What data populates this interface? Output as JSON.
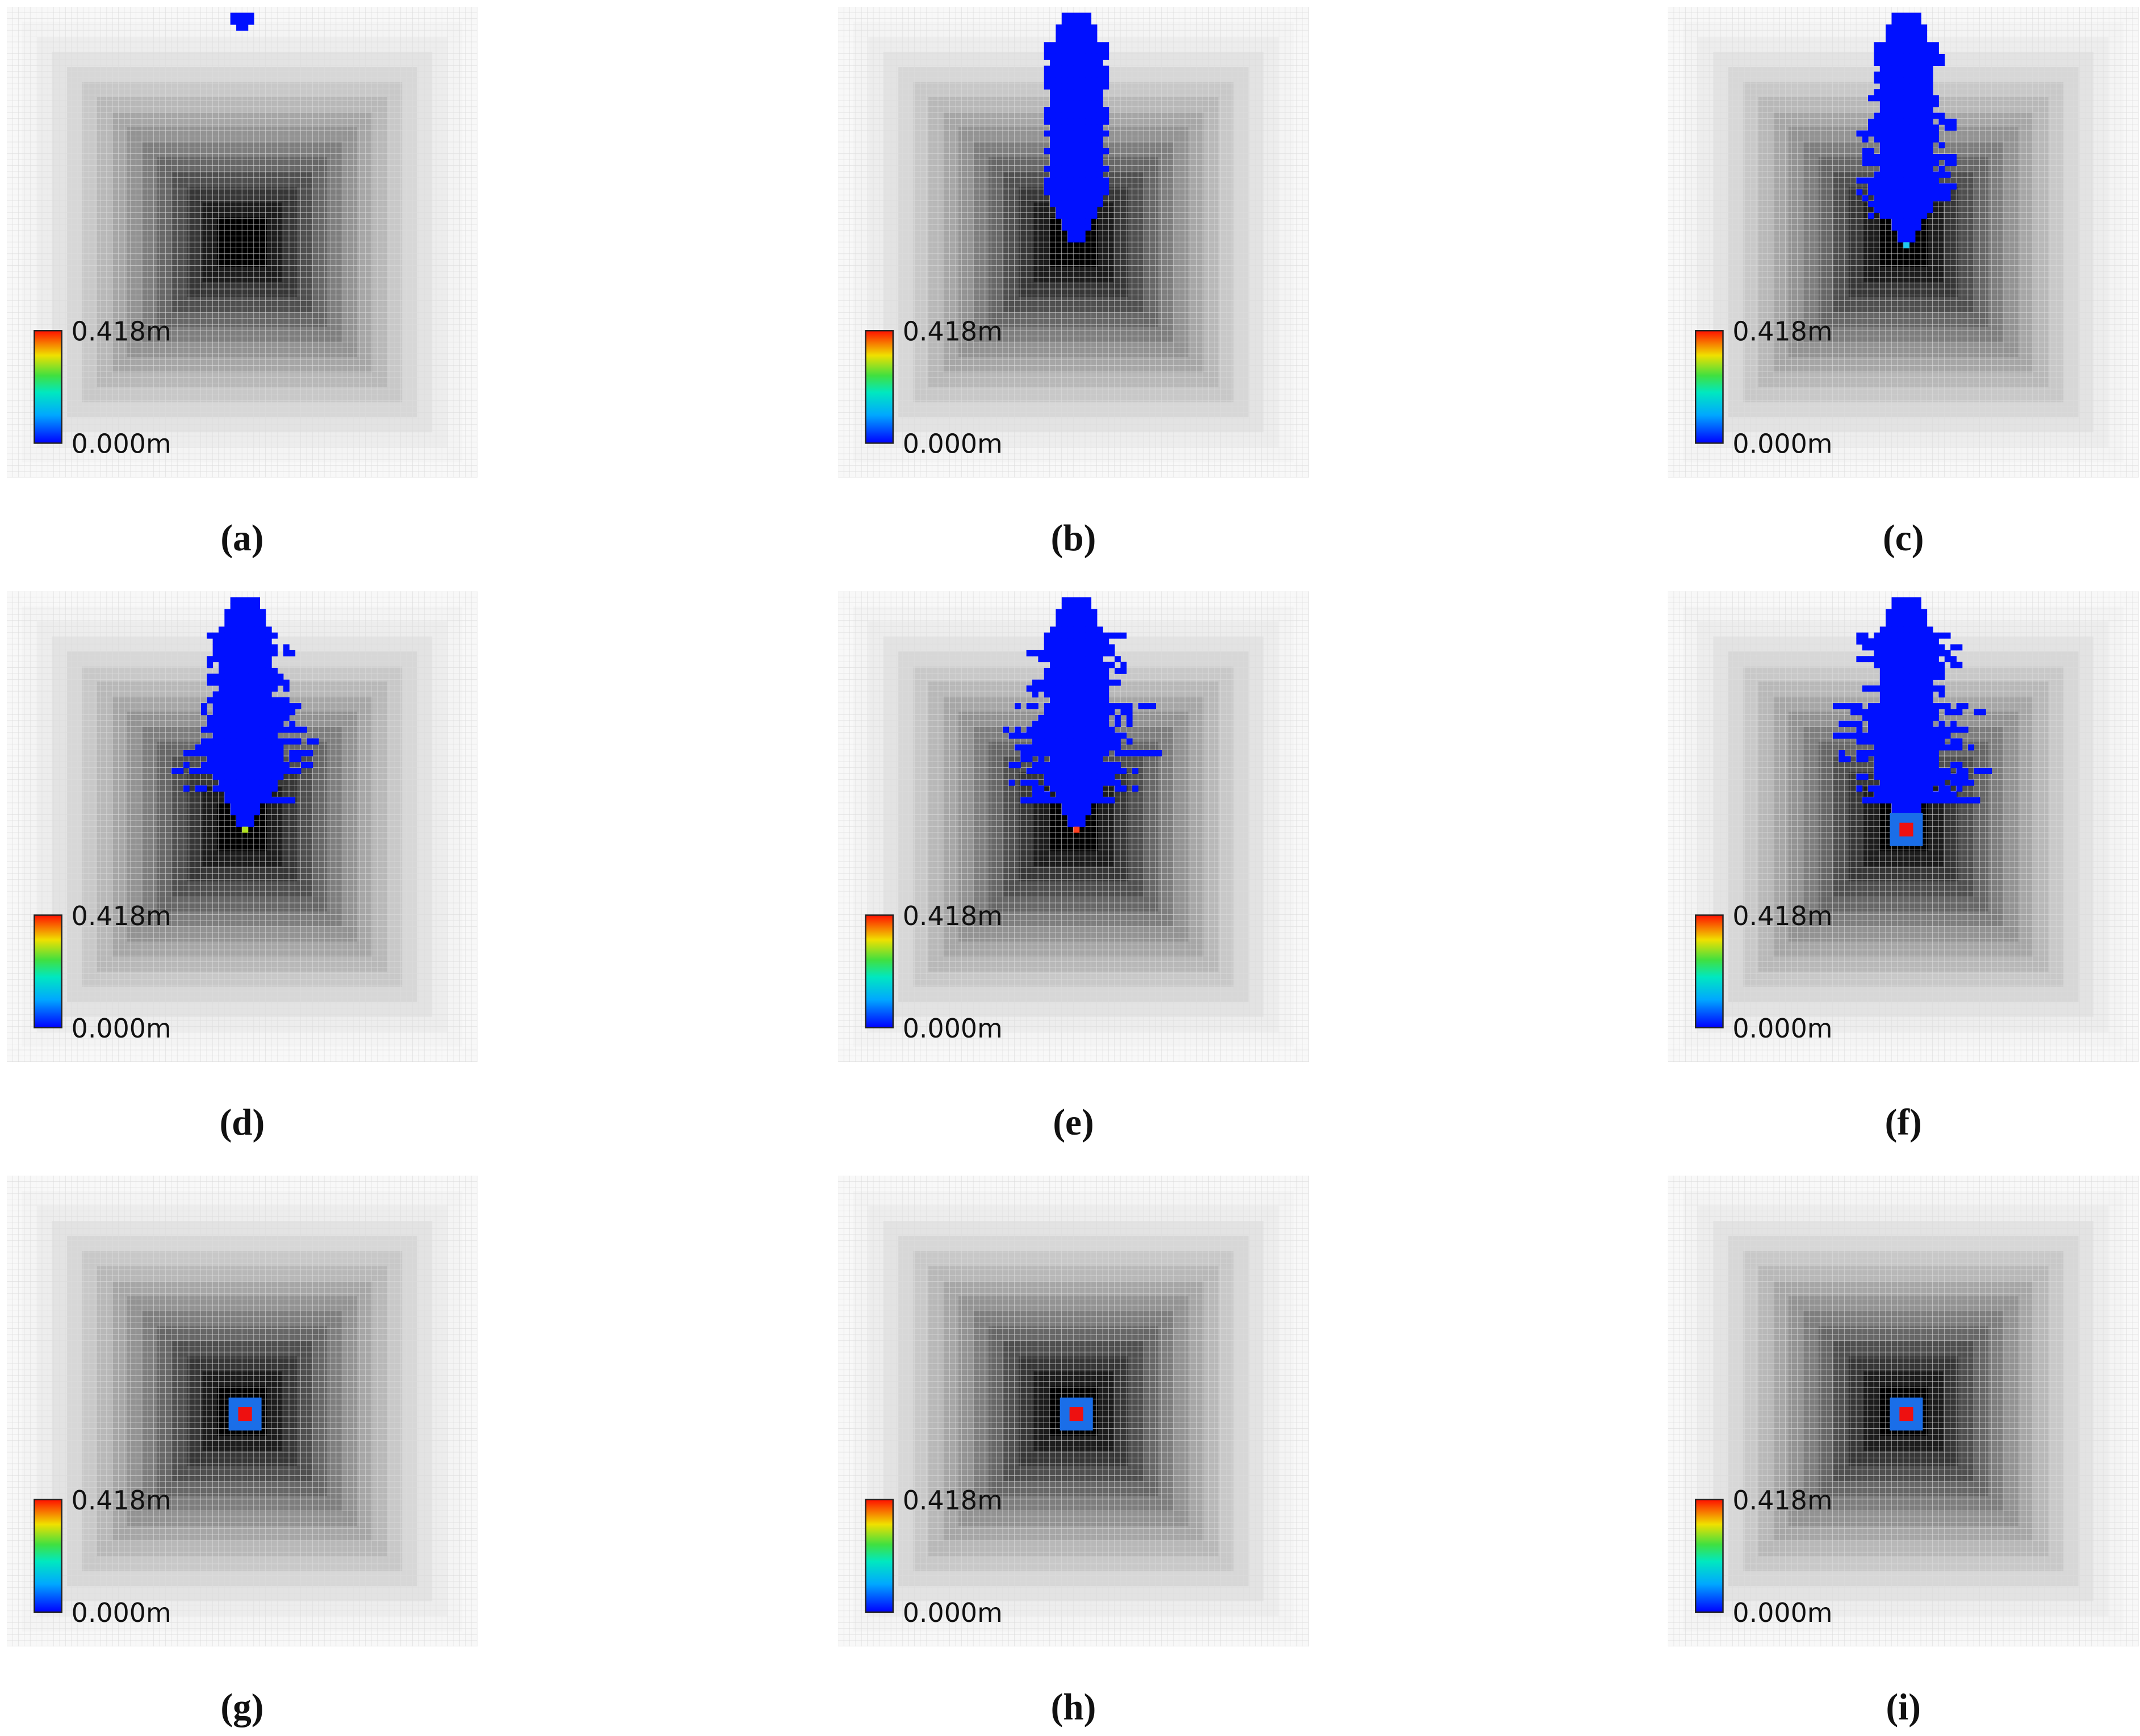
{
  "panels": [
    {
      "caption": "(a)",
      "colorbar": {
        "max": "0.418m",
        "min": "0.000m"
      }
    },
    {
      "caption": "(b)",
      "colorbar": {
        "max": "0.418m",
        "min": "0.000m"
      }
    },
    {
      "caption": "(c)",
      "colorbar": {
        "max": "0.418m",
        "min": "0.000m"
      }
    },
    {
      "caption": "(d)",
      "colorbar": {
        "max": "0.418m",
        "min": "0.000m"
      }
    },
    {
      "caption": "(e)",
      "colorbar": {
        "max": "0.418m",
        "min": "0.000m"
      }
    },
    {
      "caption": "(f)",
      "colorbar": {
        "max": "0.418m",
        "min": "0.000m"
      }
    },
    {
      "caption": "(g)",
      "colorbar": {
        "max": "0.418m",
        "min": "0.000m"
      }
    },
    {
      "caption": "(h)",
      "colorbar": {
        "max": "0.418m",
        "min": "0.000m"
      }
    },
    {
      "caption": "(i)",
      "colorbar": {
        "max": "0.418m",
        "min": "0.000m"
      }
    }
  ]
}
